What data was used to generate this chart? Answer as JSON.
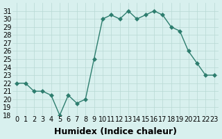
{
  "x": [
    0,
    1,
    2,
    3,
    4,
    5,
    6,
    7,
    8,
    9,
    10,
    11,
    12,
    13,
    14,
    15,
    16,
    17,
    18,
    19,
    20,
    21,
    22,
    23
  ],
  "y": [
    22,
    22,
    21,
    21,
    20.5,
    18,
    20.5,
    19.5,
    20,
    25,
    30,
    30.5,
    30,
    31,
    30,
    30.5,
    31,
    30.5,
    29,
    28.5,
    26,
    24.5,
    23,
    23
  ],
  "line_color": "#2d7d6e",
  "marker": "D",
  "marker_size": 3,
  "bg_color": "#d8f0ee",
  "grid_color": "#b8d8d4",
  "xlabel": "Humidex (Indice chaleur)",
  "ylim": [
    18,
    32
  ],
  "xlim": [
    -0.5,
    23.5
  ],
  "yticks": [
    18,
    19,
    20,
    21,
    22,
    23,
    24,
    25,
    26,
    27,
    28,
    29,
    30,
    31
  ],
  "xticks": [
    0,
    1,
    2,
    3,
    4,
    5,
    6,
    7,
    8,
    9,
    10,
    11,
    12,
    13,
    14,
    15,
    16,
    17,
    18,
    19,
    20,
    21,
    22,
    23
  ],
  "tick_fontsize": 7,
  "xlabel_fontsize": 9
}
